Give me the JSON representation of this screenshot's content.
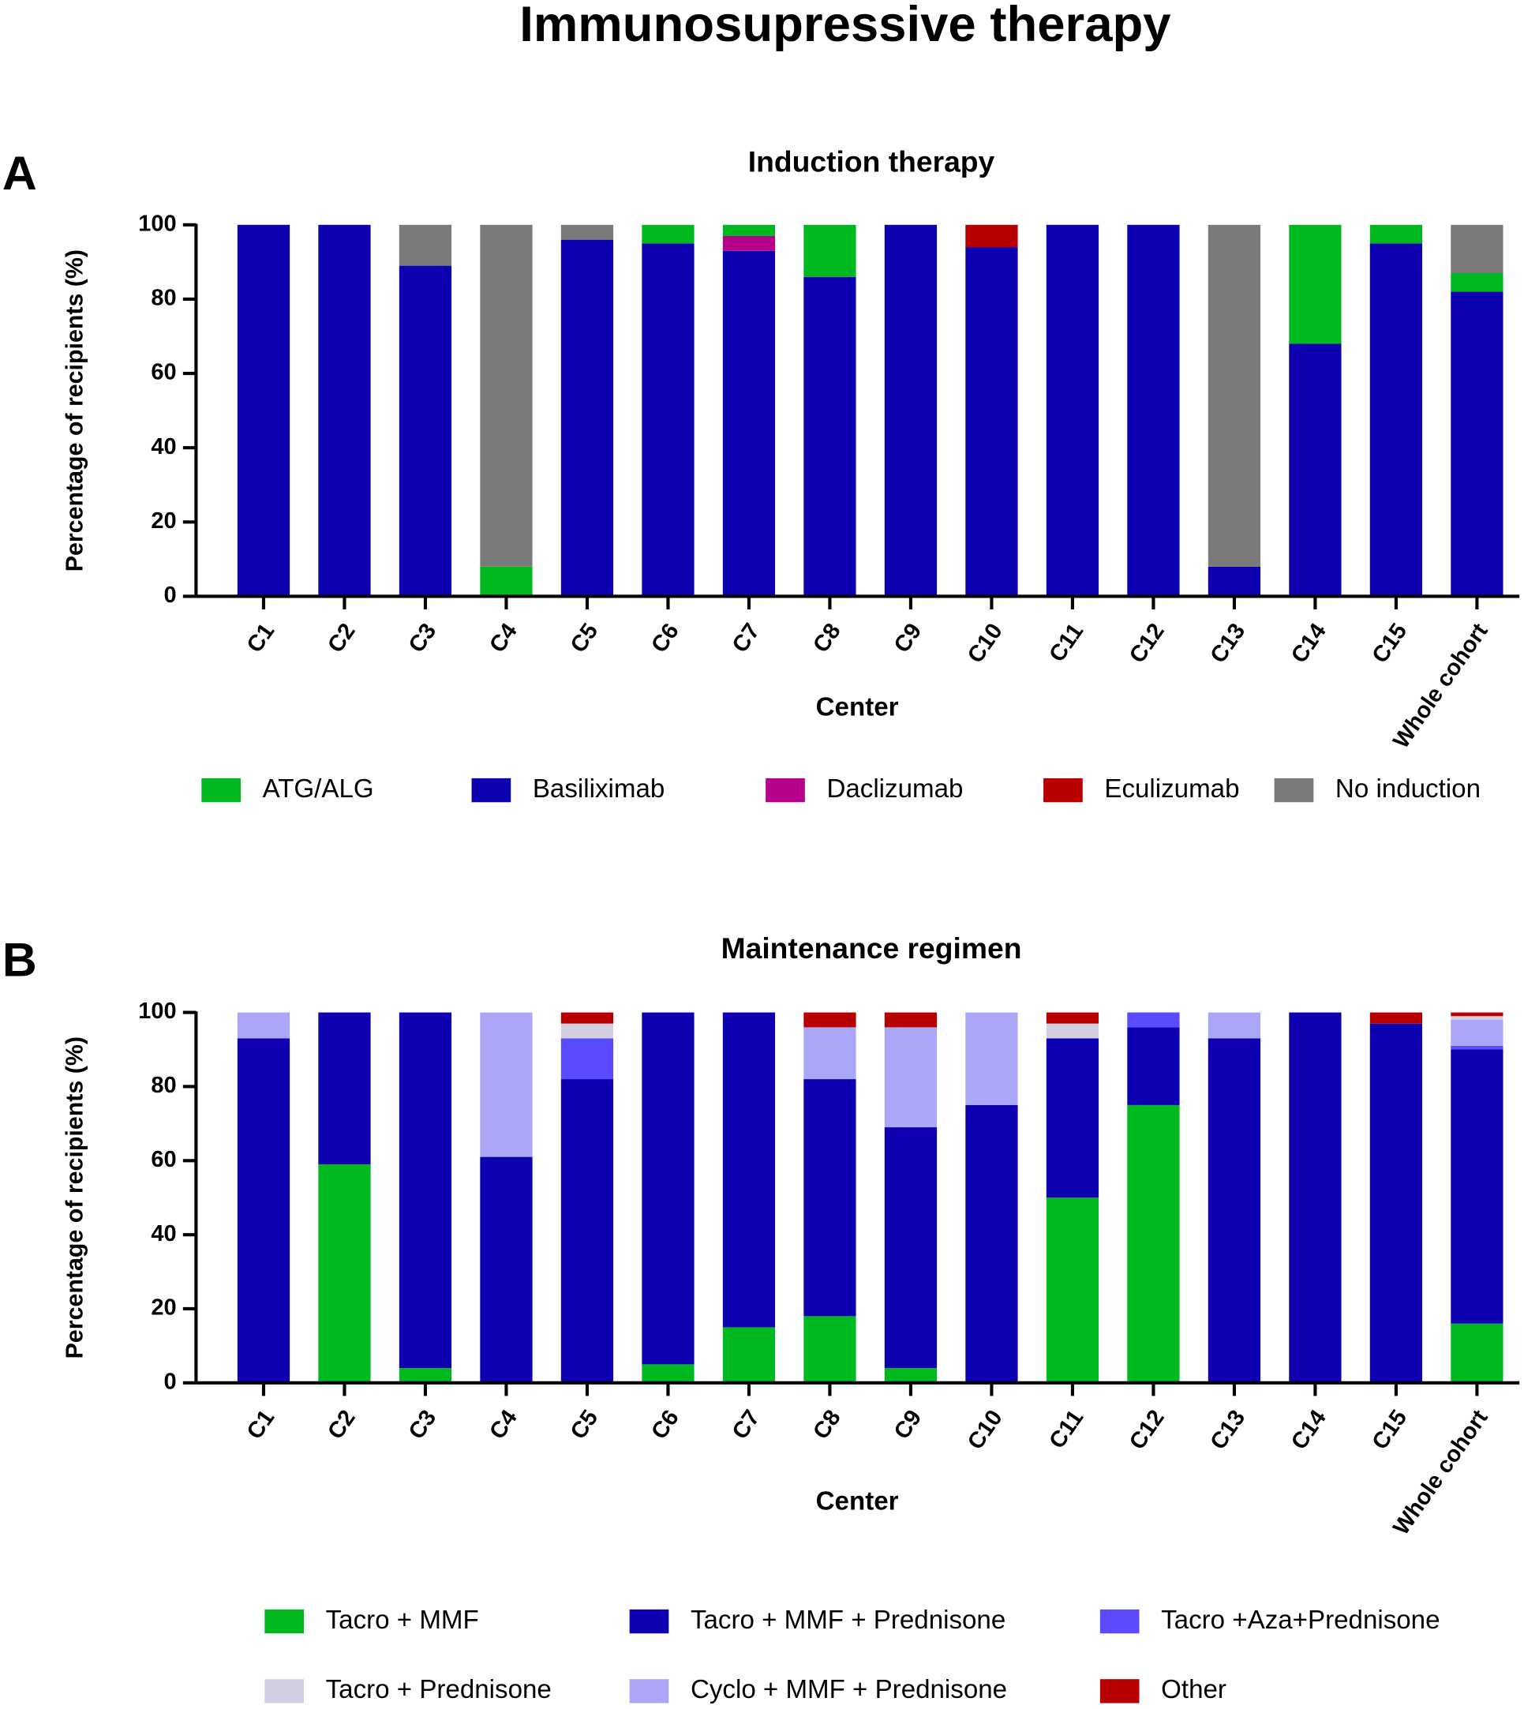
{
  "title": "Immunosupressive therapy",
  "chart_data": [
    {
      "type": "bar",
      "stacked": true,
      "panel": "A",
      "title": "Induction therapy",
      "x_label": "Center",
      "y_label": "Percentage of recipients (%)",
      "categories": [
        "C1",
        "C2",
        "C3",
        "C4",
        "C5",
        "C6",
        "C7",
        "C8",
        "C9",
        "C10",
        "C11",
        "C12",
        "C13",
        "C14",
        "C15",
        "Whole cohort"
      ],
      "ylim": [
        0,
        100
      ],
      "yticks": [
        0,
        20,
        40,
        60,
        80,
        100
      ],
      "series": [
        {
          "name": "Basiliximab",
          "color": "#0c00b0",
          "values": [
            100,
            100,
            89,
            0,
            96,
            95,
            93,
            86,
            100,
            94,
            100,
            100,
            8,
            68,
            95,
            82
          ]
        },
        {
          "name": "Daclizumab",
          "color": "#b5008a",
          "values": [
            0,
            0,
            0,
            0,
            0,
            0,
            4,
            0,
            0,
            0,
            0,
            0,
            0,
            0,
            0,
            0
          ]
        },
        {
          "name": "Eculizumab",
          "color": "#b80000",
          "values": [
            0,
            0,
            0,
            0,
            0,
            0,
            0,
            0,
            0,
            6,
            0,
            0,
            0,
            0,
            0,
            0
          ]
        },
        {
          "name": "ATG/ALG",
          "color": "#00b81f",
          "values": [
            0,
            0,
            0,
            8,
            0,
            5,
            3,
            14,
            0,
            0,
            0,
            0,
            0,
            32,
            5,
            5
          ]
        },
        {
          "name": "No induction",
          "color": "#7a7a7a",
          "values": [
            0,
            0,
            11,
            92,
            4,
            0,
            0,
            0,
            0,
            0,
            0,
            0,
            92,
            0,
            0,
            13
          ]
        }
      ]
    },
    {
      "type": "bar",
      "stacked": true,
      "panel": "B",
      "title": "Maintenance regimen",
      "x_label": "Center",
      "y_label": "Percentage of recipients (%)",
      "categories": [
        "C1",
        "C2",
        "C3",
        "C4",
        "C5",
        "C6",
        "C7",
        "C8",
        "C9",
        "C10",
        "C11",
        "C12",
        "C13",
        "C14",
        "C15",
        "Whole cohort"
      ],
      "ylim": [
        0,
        100
      ],
      "yticks": [
        0,
        20,
        40,
        60,
        80,
        100
      ],
      "series": [
        {
          "name": "Tacro + MMF",
          "color": "#00b81f",
          "values": [
            0,
            59,
            4,
            0,
            0,
            5,
            15,
            18,
            4,
            0,
            50,
            75,
            0,
            0,
            0,
            16
          ]
        },
        {
          "name": "Tacro + MMF + Prednisone",
          "color": "#0c00b0",
          "values": [
            93,
            41,
            96,
            61,
            82,
            95,
            85,
            64,
            65,
            75,
            43,
            21,
            93,
            100,
            97,
            74
          ]
        },
        {
          "name": "Tacro +Aza+Prednisone",
          "color": "#5a4bff",
          "values": [
            0,
            0,
            0,
            0,
            11,
            0,
            0,
            0,
            0,
            0,
            0,
            4,
            0,
            0,
            0,
            1
          ]
        },
        {
          "name": "Cyclo + MMF + Prednisone",
          "color": "#aaa6f8",
          "values": [
            7,
            0,
            0,
            39,
            0,
            0,
            0,
            14,
            27,
            25,
            0,
            0,
            7,
            0,
            0,
            7
          ]
        },
        {
          "name": "Tacro + Prednisone",
          "color": "#d2cfe2",
          "values": [
            0,
            0,
            0,
            0,
            4,
            0,
            0,
            0,
            0,
            0,
            4,
            0,
            0,
            0,
            0,
            1
          ]
        },
        {
          "name": "Other",
          "color": "#b80000",
          "values": [
            0,
            0,
            0,
            0,
            3,
            0,
            0,
            4,
            4,
            0,
            3,
            0,
            0,
            0,
            3,
            1
          ]
        }
      ]
    }
  ]
}
